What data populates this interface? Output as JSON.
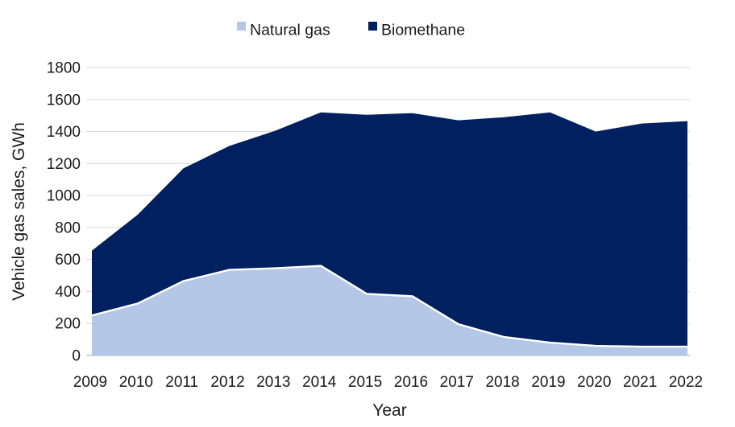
{
  "chart_data": {
    "type": "area",
    "stacked": true,
    "title": "",
    "xlabel": "Year",
    "ylabel": "Vehicle gas sales, GWh",
    "x": [
      2009,
      2010,
      2011,
      2012,
      2013,
      2014,
      2015,
      2016,
      2017,
      2018,
      2019,
      2020,
      2021,
      2022
    ],
    "series": [
      {
        "name": "Natural gas",
        "color": "#b4c7e7",
        "values": [
          250,
          325,
          465,
          535,
          545,
          560,
          385,
          370,
          195,
          115,
          80,
          60,
          55,
          55
        ]
      },
      {
        "name": "Biomethane",
        "color": "#002060",
        "values": [
          405,
          555,
          705,
          775,
          860,
          960,
          1120,
          1145,
          1275,
          1375,
          1440,
          1340,
          1395,
          1410
        ]
      }
    ],
    "totals_hint": [
      650,
      880,
      1170,
      1310,
      1405,
      1520,
      1505,
      1515,
      1470,
      1490,
      1520,
      1400,
      1450,
      1465
    ],
    "ylim": [
      0,
      1800
    ],
    "ytick_step": 200,
    "grid": "horizontal",
    "gridline_color": "#d9d9d9",
    "axis_line_color": "#c3c3c3",
    "separator_line_color": "#ffffff",
    "text_color": "#1a1a1a",
    "legend_position": "top-center"
  }
}
